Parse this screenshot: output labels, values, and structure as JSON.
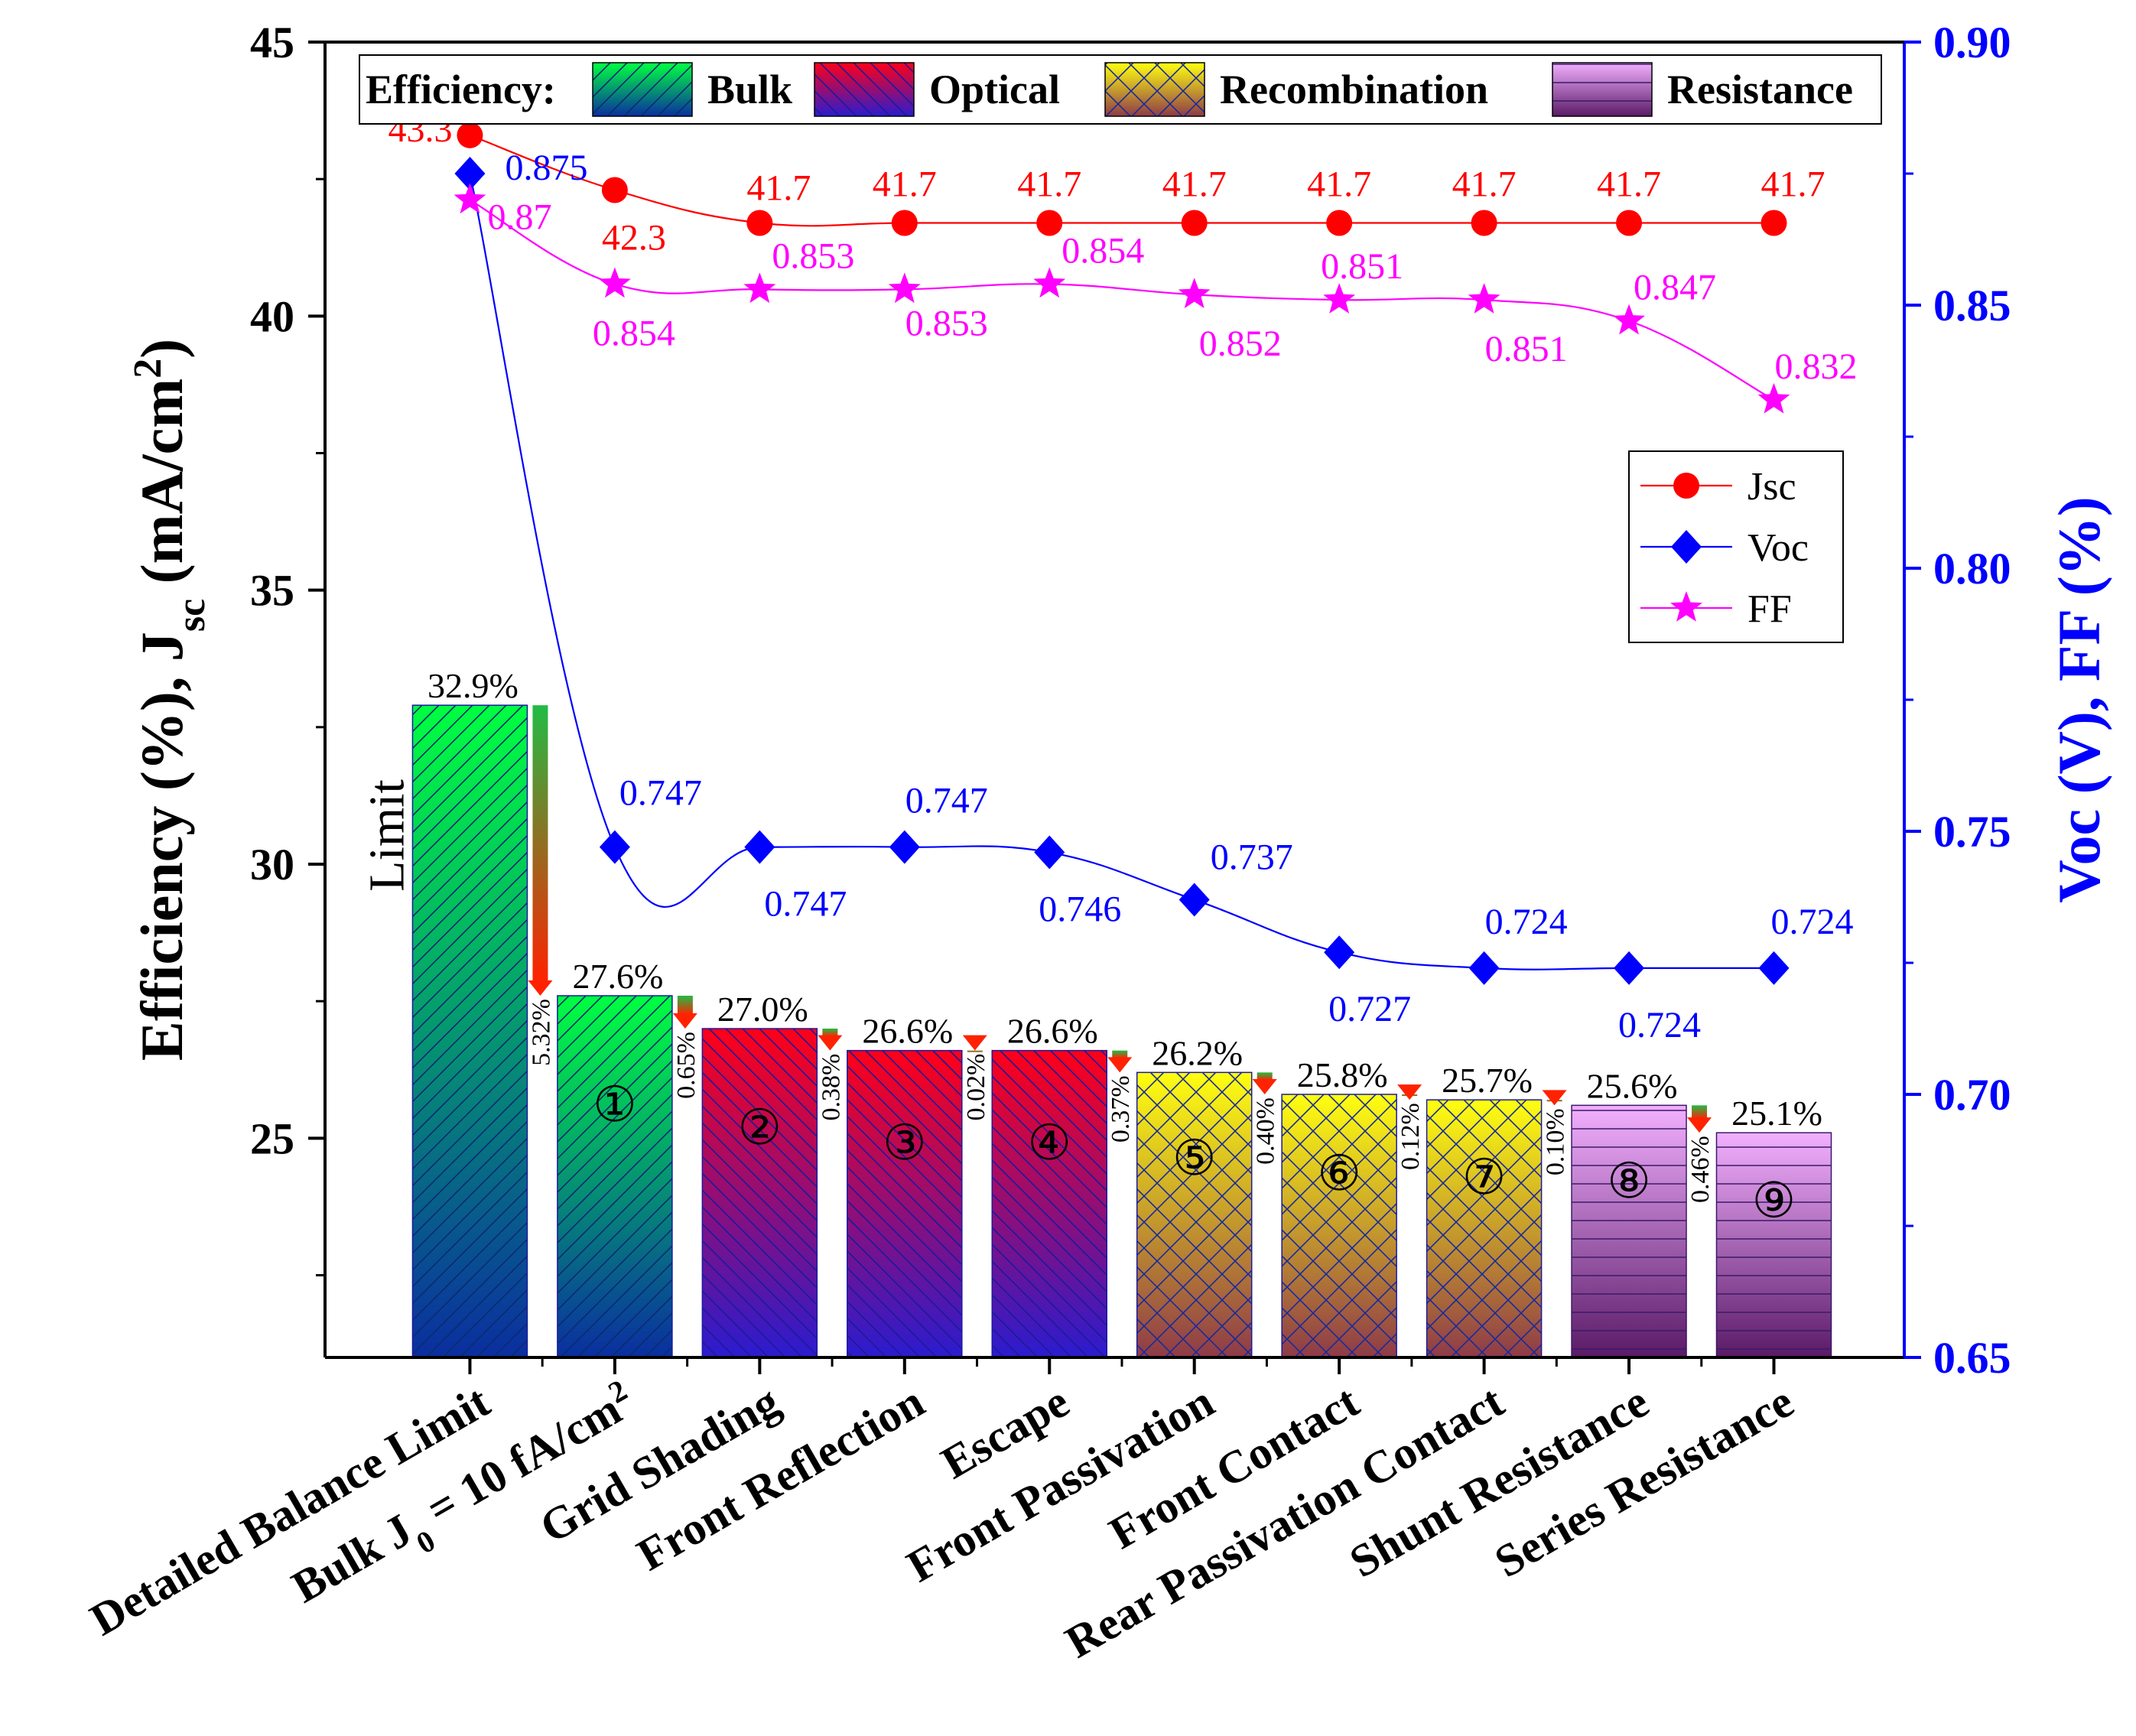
{
  "chart_data": {
    "type": "bar",
    "title": "",
    "ylabel_main": "Efficiency (%), J",
    "ylabel_sub": "sc",
    "ylabel_unit_pre": " (mA/cm",
    "ylabel_unit_sup": "2",
    "ylabel_unit_post": ")",
    "y2label": "Voc (V), FF (%)",
    "ylim": [
      21,
      45
    ],
    "y2lim": [
      0.65,
      0.9
    ],
    "yticks": [
      "25",
      "30",
      "35",
      "40",
      "45"
    ],
    "y2ticks": [
      "0.65",
      "0.70",
      "0.75",
      "0.80",
      "0.85",
      "0.90"
    ],
    "categories": [
      "Detailed Balance Limit",
      "Bulk J0 = 10 fA/cm2",
      "Grid Shading",
      "Front Reflection",
      "Escape",
      "Front Passivation",
      "Front Contact",
      "Rear Passivation Contact",
      "Shunt Resistance",
      "Series Resistance"
    ],
    "bulk_label": {
      "pre": "Bulk J",
      "sub": "0",
      "mid": " = 10 fA/cm",
      "sup": "2"
    },
    "efficiency": [
      32.9,
      27.6,
      27.0,
      26.6,
      26.6,
      26.2,
      25.8,
      25.7,
      25.6,
      25.1
    ],
    "efficiency_labels": [
      "32.9%",
      "27.6%",
      "27.0%",
      "26.6%",
      "26.6%",
      "26.2%",
      "25.8%",
      "25.7%",
      "25.6%",
      "25.1%"
    ],
    "bar_groups": [
      "bulk",
      "bulk",
      "optical",
      "optical",
      "optical",
      "recombination",
      "recombination",
      "recombination",
      "resistance",
      "resistance"
    ],
    "step_numbers": [
      "",
      "①",
      "②",
      "③",
      "④",
      "⑤",
      "⑥",
      "⑦",
      "⑧",
      "⑨"
    ],
    "losses": [
      "5.32%",
      "0.65%",
      "0.38%",
      "0.02%",
      "0.37%",
      "0.40%",
      "0.12%",
      "0.10%",
      "0.46%"
    ],
    "limit_label": "Limit",
    "series": [
      {
        "name": "Jsc",
        "axis": "left",
        "color": "#ff0000",
        "marker": "circle",
        "values": [
          43.3,
          42.3,
          41.7,
          41.7,
          41.7,
          41.7,
          41.7,
          41.7,
          41.7,
          41.7
        ],
        "labels": [
          "43.3",
          "42.3",
          "41.7",
          "41.7",
          "41.7",
          "41.7",
          "41.7",
          "41.7",
          "41.7",
          "41.7"
        ]
      },
      {
        "name": "Voc",
        "axis": "right",
        "color": "#0000ff",
        "marker": "diamond",
        "values": [
          0.875,
          0.747,
          0.747,
          0.747,
          0.746,
          0.737,
          0.727,
          0.724,
          0.724,
          0.724
        ],
        "labels": [
          "0.875",
          "0.747",
          "0.747",
          "0.747",
          "0.746",
          "0.737",
          "0.727",
          "0.724",
          "0.724",
          "0.724"
        ]
      },
      {
        "name": "FF",
        "axis": "right",
        "color": "#ff00ff",
        "marker": "star",
        "values": [
          0.87,
          0.854,
          0.853,
          0.853,
          0.854,
          0.852,
          0.851,
          0.851,
          0.847,
          0.832
        ],
        "labels": [
          "0.87",
          "0.854",
          "0.853",
          "0.853",
          "0.854",
          "0.852",
          "0.851",
          "0.851",
          "0.847",
          "0.832"
        ]
      }
    ],
    "legend_efficiency": {
      "title": "Efficiency:",
      "entries": [
        {
          "key": "bulk",
          "label": "Bulk"
        },
        {
          "key": "optical",
          "label": "Optical"
        },
        {
          "key": "recombination",
          "label": "Recombination"
        },
        {
          "key": "resistance",
          "label": "Resistance"
        }
      ],
      "placement": "top"
    },
    "legend_lines": {
      "entries": [
        "Jsc",
        "Voc",
        "FF"
      ],
      "placement": "right"
    }
  },
  "colors": {
    "axis_left": "#000000",
    "axis_right": "#0000ff",
    "jsc": "#ff0000",
    "voc": "#0000ff",
    "ff": "#ff00ff",
    "bulk_top": "#00ff40",
    "bulk_bottom": "#0a2ea0",
    "optical_top": "#ff0018",
    "optical_bottom": "#2a1ccf",
    "recomb_top": "#ffff10",
    "recomb_bottom": "#8e3a48",
    "resist_top": "#f2b0ff",
    "resist_bottom": "#5a1a66"
  }
}
